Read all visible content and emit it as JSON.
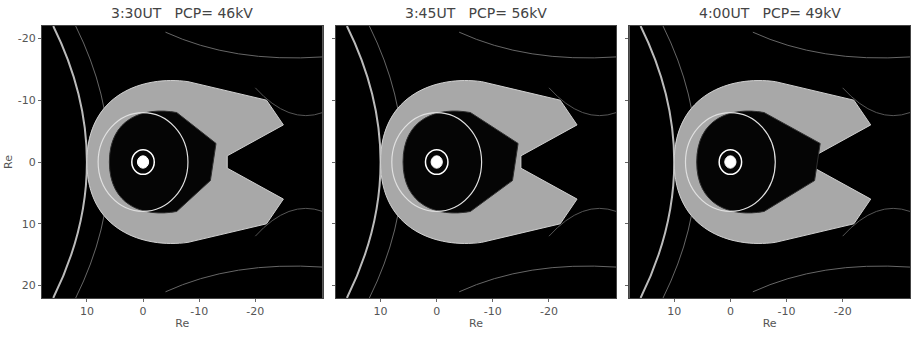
{
  "chart_data": [
    {
      "type": "map",
      "title": "3:30UT   PCP= 46kV",
      "xlabel": "Re",
      "ylabel": "Re",
      "xlim": [
        18,
        -32
      ],
      "ylim": [
        22,
        -22
      ],
      "xticks": [
        10,
        0,
        -10,
        -20
      ],
      "yticks": [
        -20,
        -10,
        0,
        10,
        20
      ],
      "inner_boundary_radius": 8,
      "earth_radius": 1
    },
    {
      "type": "map",
      "title": "3:45UT   PCP= 56kV",
      "xlabel": "Re",
      "xlim": [
        18,
        -32
      ],
      "ylim": [
        22,
        -22
      ],
      "xticks": [
        10,
        0,
        -10,
        -20
      ],
      "yticks": [
        -20,
        -10,
        0,
        10,
        20
      ],
      "tick_labels": "x",
      "inner_boundary_radius": 8,
      "earth_radius": 1
    },
    {
      "type": "map",
      "title": "4:00UT   PCP= 49kV",
      "xlabel": "Re",
      "xlim": [
        18,
        -32
      ],
      "ylim": [
        22,
        -22
      ],
      "xticks": [
        10,
        0,
        -10,
        -20
      ],
      "yticks": [
        -20,
        -10,
        0,
        10,
        20
      ],
      "tick_labels": "x",
      "inner_boundary_radius": 8,
      "earth_radius": 1
    }
  ]
}
